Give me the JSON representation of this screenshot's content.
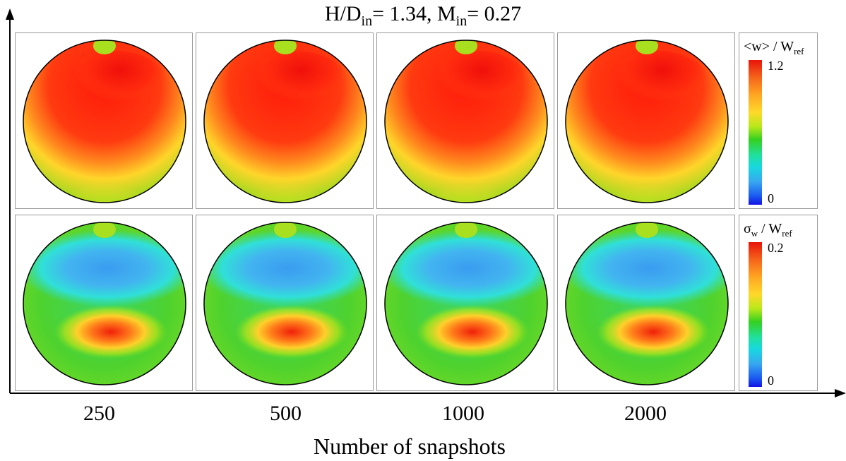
{
  "title": {
    "prefix": "H/D",
    "sub1": "in",
    "mid": "= 1.34, M",
    "sub2": "in",
    "suffix": "= 0.27"
  },
  "rows": [
    {
      "quantity": "mean-velocity",
      "colorbar": {
        "label_main": "<w> / W",
        "label_sub": "ref",
        "max": "1.2",
        "min": "0"
      }
    },
    {
      "quantity": "velocity-std",
      "colorbar": {
        "label_main": "σ",
        "label_sub_a": "w",
        "label_mid": " / W",
        "label_sub": "ref",
        "max": "0.2",
        "min": "0"
      }
    }
  ],
  "columns": [
    "250",
    "500",
    "1000",
    "2000"
  ],
  "x_axis_title": "Number of snapshots",
  "colors": {
    "high": "#e8140a",
    "mid": "#35d020",
    "low": "#1414e6"
  }
}
